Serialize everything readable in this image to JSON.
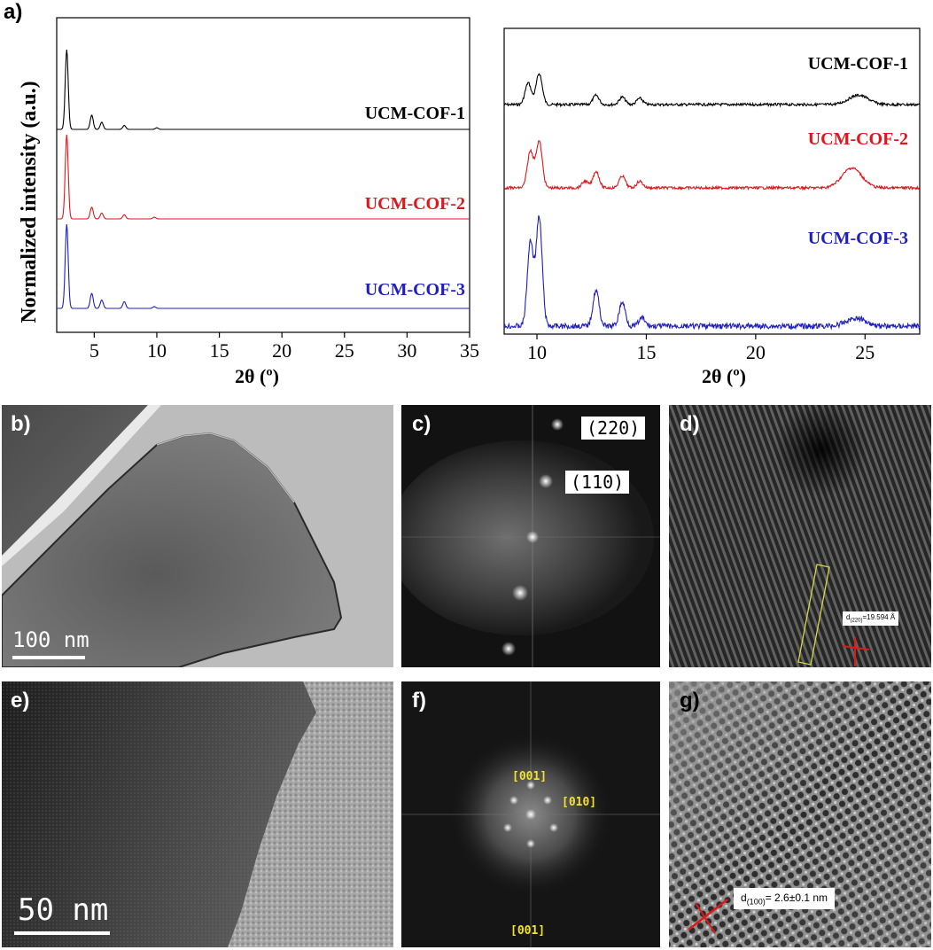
{
  "figure": {
    "label_a": "a)",
    "label_b": "b)",
    "label_c": "c)",
    "label_d": "d)",
    "label_e": "e)",
    "label_f": "f)",
    "label_g": "g)"
  },
  "chart_data": [
    {
      "type": "line",
      "panel": "a-left",
      "xlabel": "2θ (º)",
      "ylabel": "Normalized intensity (a.u.)",
      "xlim": [
        2,
        35
      ],
      "xticks": [
        5,
        10,
        15,
        20,
        25,
        30,
        35
      ],
      "grid": false,
      "series": [
        {
          "name": "UCM-COF-1",
          "color": "#000000",
          "peaks": [
            [
              2.8,
              1.0
            ],
            [
              4.8,
              0.18
            ],
            [
              5.6,
              0.09
            ],
            [
              7.4,
              0.05
            ],
            [
              10.0,
              0.02
            ]
          ]
        },
        {
          "name": "UCM-COF-2",
          "color": "#e0161b",
          "peaks": [
            [
              2.8,
              1.0
            ],
            [
              4.8,
              0.14
            ],
            [
              5.6,
              0.07
            ],
            [
              7.4,
              0.05
            ],
            [
              9.8,
              0.02
            ]
          ]
        },
        {
          "name": "UCM-COF-3",
          "color": "#1f1fbf",
          "peaks": [
            [
              2.8,
              1.0
            ],
            [
              4.8,
              0.18
            ],
            [
              5.6,
              0.1
            ],
            [
              7.4,
              0.08
            ],
            [
              9.8,
              0.02
            ]
          ]
        }
      ]
    },
    {
      "type": "line",
      "panel": "a-right",
      "xlabel": "2θ (º)",
      "xlim": [
        8.5,
        27.5
      ],
      "xticks": [
        10,
        15,
        20,
        25
      ],
      "grid": false,
      "series": [
        {
          "name": "UCM-COF-1",
          "color": "#000000",
          "peaks": [
            [
              9.6,
              0.35
            ],
            [
              10.1,
              0.5
            ],
            [
              12.7,
              0.15
            ],
            [
              13.9,
              0.12
            ],
            [
              14.7,
              0.1
            ],
            [
              24.7,
              0.15
            ]
          ]
        },
        {
          "name": "UCM-COF-2",
          "color": "#e0161b",
          "peaks": [
            [
              9.7,
              0.55
            ],
            [
              10.1,
              0.7
            ],
            [
              12.2,
              0.1
            ],
            [
              12.7,
              0.25
            ],
            [
              13.9,
              0.18
            ],
            [
              14.7,
              0.1
            ],
            [
              24.4,
              0.3
            ]
          ]
        },
        {
          "name": "UCM-COF-3",
          "color": "#1f1fbf",
          "peaks": [
            [
              9.7,
              1.05
            ],
            [
              10.1,
              1.35
            ],
            [
              12.7,
              0.45
            ],
            [
              13.9,
              0.3
            ],
            [
              14.8,
              0.1
            ],
            [
              24.6,
              0.1
            ]
          ]
        }
      ]
    }
  ],
  "tem": {
    "b_scale": "100 nm",
    "c_spot1": "(220)",
    "c_spot2": "(110)",
    "d_label_main": "d",
    "d_label_sub": "(220)",
    "d_label_val": "=19.594 Å",
    "e_scale": "50 nm",
    "f_top": "[001]",
    "f_right": "[010]",
    "f_bottom": "[001]",
    "g_label_main": "d",
    "g_label_sub": "(100)",
    "g_label_val": "= 2.6±0.1 nm"
  }
}
